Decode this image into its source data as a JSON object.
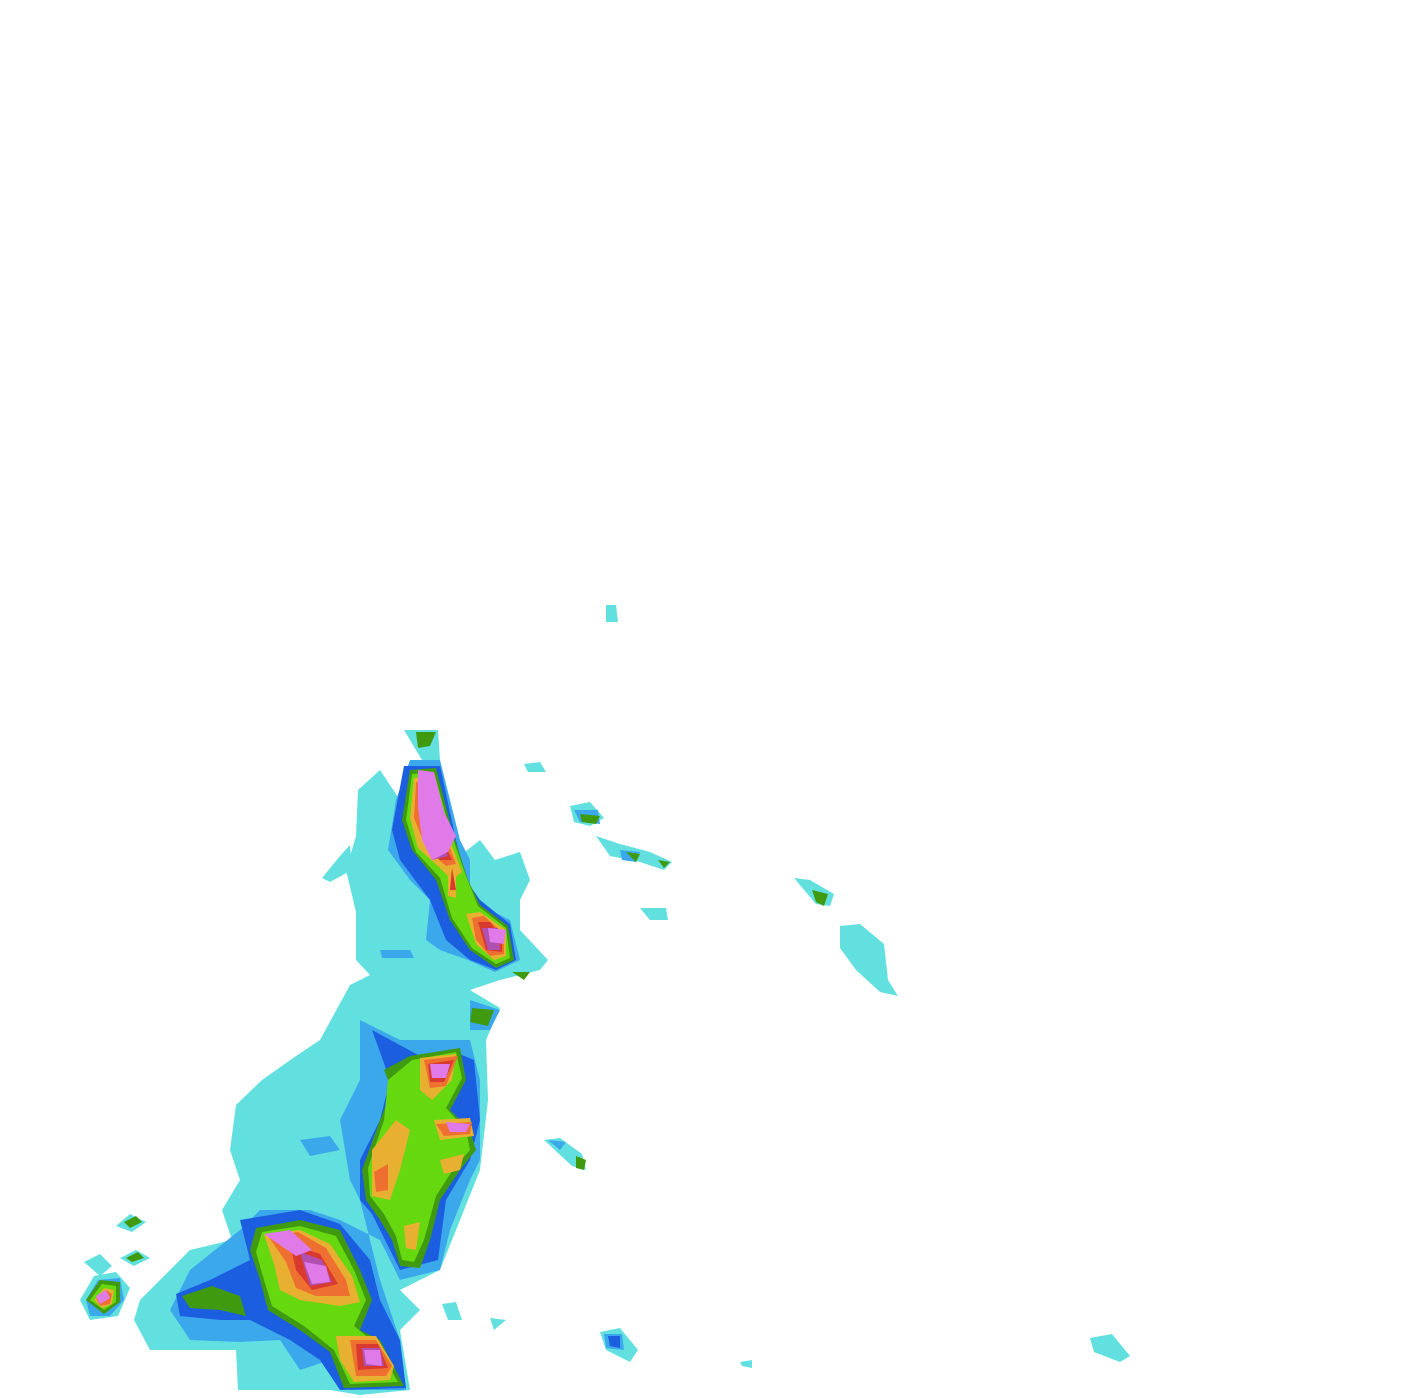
{
  "radar": {
    "intensity_colors": [
      "#62e0e0",
      "#3ca8ec",
      "#1c5ee0",
      "#3f9a10",
      "#66d810",
      "#e8b030",
      "#ee7030",
      "#d83a30",
      "#b050b0",
      "#e07ae8"
    ]
  }
}
